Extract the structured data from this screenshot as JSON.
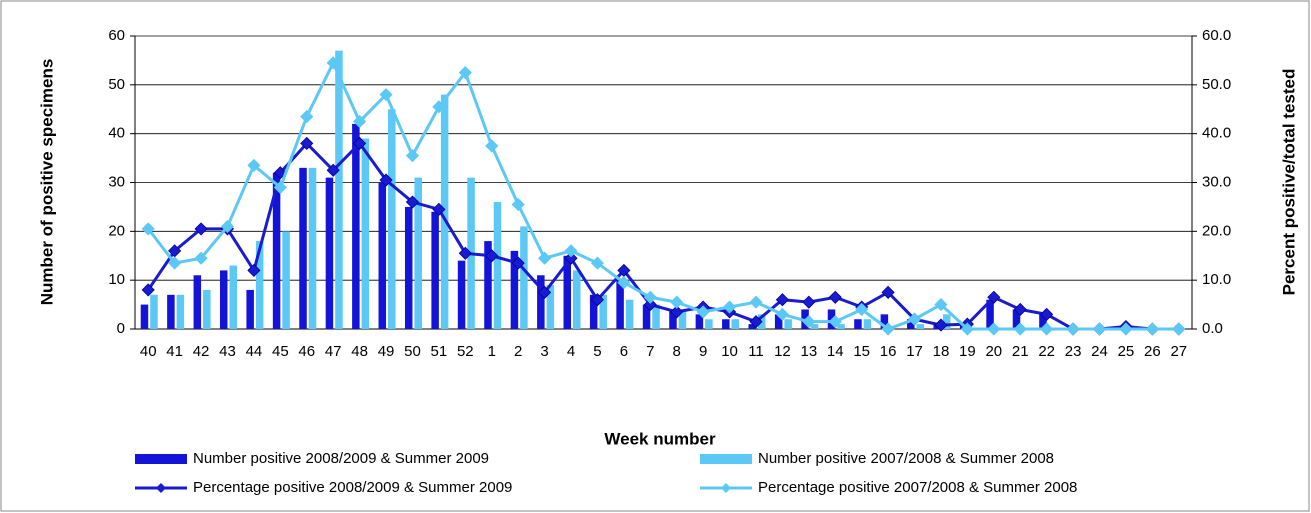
{
  "chart_data": {
    "type": "combo",
    "categories": [
      "40",
      "41",
      "42",
      "43",
      "44",
      "45",
      "46",
      "47",
      "48",
      "49",
      "50",
      "51",
      "52",
      "1",
      "2",
      "3",
      "4",
      "5",
      "6",
      "7",
      "8",
      "9",
      "10",
      "11",
      "12",
      "13",
      "14",
      "15",
      "16",
      "17",
      "18",
      "19",
      "20",
      "21",
      "22",
      "23",
      "24",
      "25",
      "26",
      "27"
    ],
    "x_label": "Week number",
    "y_label": "Number of positive specimens",
    "y2_label": "Percent positive/total tested",
    "ylim": [
      0,
      60
    ],
    "yticks": [
      0,
      10,
      20,
      30,
      40,
      50,
      60
    ],
    "y2lim": [
      0,
      60
    ],
    "y2ticks": [
      {
        "value": 0,
        "label": "0.0"
      },
      {
        "value": 10,
        "label": "10.0"
      },
      {
        "value": 20,
        "label": "20.0"
      },
      {
        "value": 30,
        "label": "30.0"
      },
      {
        "value": 40,
        "label": "40.0"
      },
      {
        "value": 50,
        "label": "50.0"
      },
      {
        "value": 60,
        "label": "60.0"
      }
    ],
    "grid": true,
    "series": [
      {
        "name": "Number positive 2008/2009 & Summer 2009",
        "kind": "bar",
        "color": "#1414d8",
        "values": [
          5,
          7,
          11,
          12,
          8,
          32,
          33,
          31,
          42,
          30,
          25,
          24,
          14,
          18,
          16,
          11,
          15,
          7,
          10,
          5,
          4,
          3,
          2,
          1,
          3,
          4,
          4,
          2,
          3,
          2,
          1,
          1,
          6,
          4,
          3,
          0,
          0,
          0,
          0,
          0
        ]
      },
      {
        "name": "Number positive 2007/2008 & Summer 2008",
        "kind": "bar",
        "color": "#5bc8f5",
        "values": [
          7,
          7,
          8,
          13,
          18,
          20,
          33,
          57,
          39,
          45,
          31,
          48,
          31,
          26,
          21,
          9,
          12,
          7,
          6,
          5,
          4,
          2,
          2,
          3,
          2,
          1,
          1,
          2,
          0,
          1,
          3,
          0,
          0,
          0,
          0,
          0,
          0,
          0,
          0,
          0
        ]
      },
      {
        "name": "Percentage positive 2008/2009 & Summer 2009",
        "kind": "line",
        "axis": "y2",
        "color": "#1a1ad0",
        "values": [
          8,
          16,
          20.5,
          20.5,
          12,
          32,
          38,
          32.5,
          38,
          30.5,
          26,
          24.5,
          15.5,
          15,
          13.5,
          7.5,
          14.5,
          6,
          12,
          5,
          3.5,
          4.5,
          3.5,
          1.5,
          6,
          5.5,
          6.5,
          4.5,
          7.5,
          2,
          0.8,
          1,
          6.5,
          4,
          3,
          0,
          0,
          0.5,
          0,
          0
        ]
      },
      {
        "name": "Percentage positive 2007/2008 & Summer 2008",
        "kind": "line",
        "axis": "y2",
        "color": "#5bc8f5",
        "values": [
          20.5,
          13.5,
          14.5,
          21,
          33.5,
          29,
          43.5,
          54.5,
          42.5,
          48,
          35.5,
          45.5,
          52.5,
          37.5,
          25.5,
          14.5,
          16,
          13.5,
          9.5,
          6.5,
          5.5,
          3.5,
          4.5,
          5.5,
          3,
          1.5,
          1.5,
          4,
          0,
          2,
          5,
          0,
          0,
          0,
          0,
          0,
          0,
          0,
          0,
          0
        ]
      }
    ]
  }
}
